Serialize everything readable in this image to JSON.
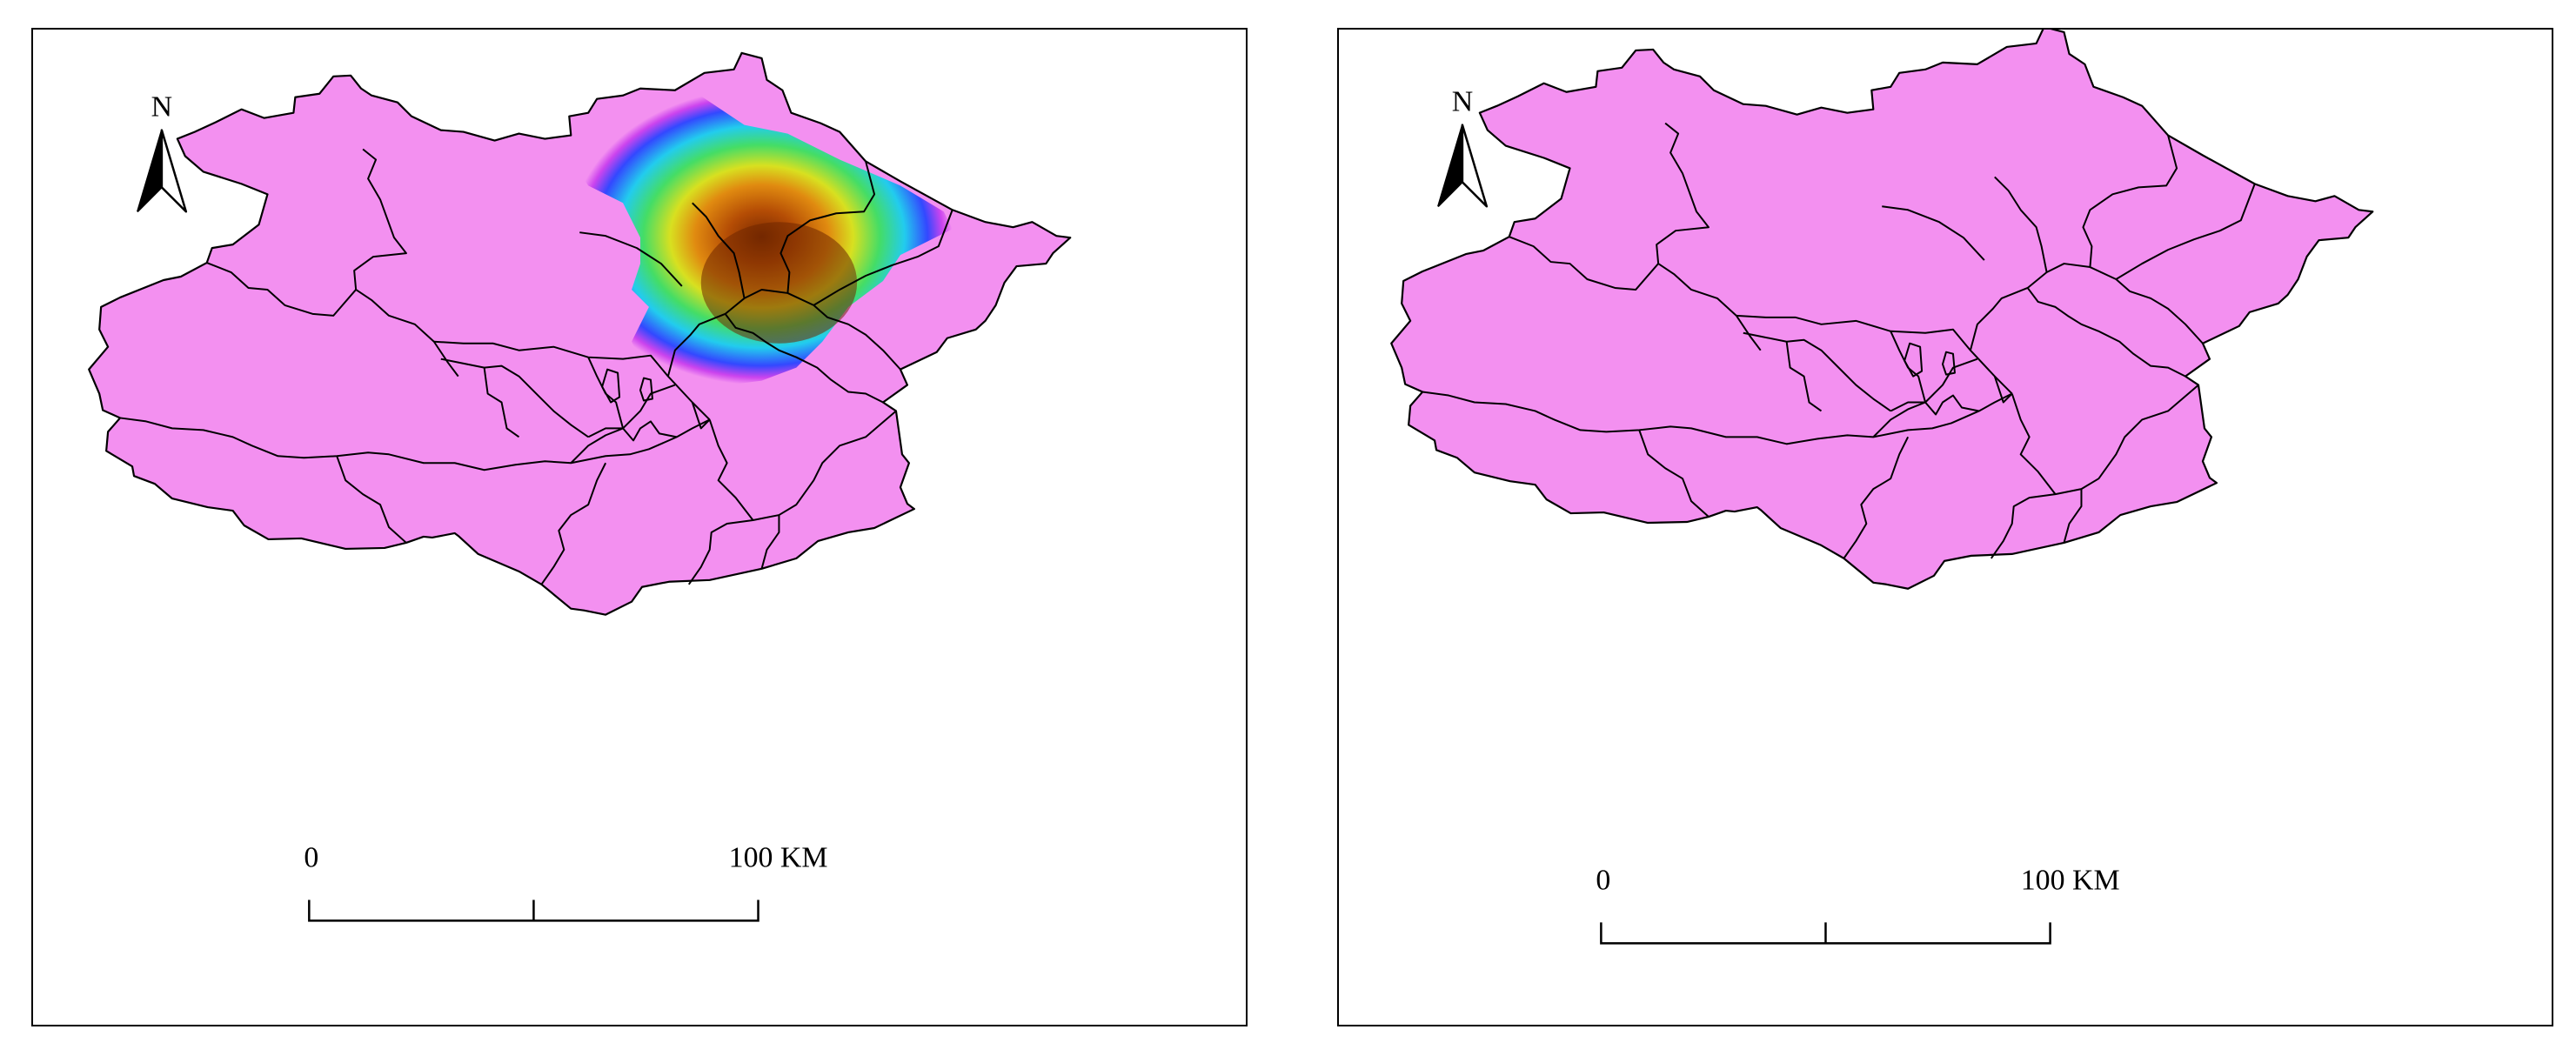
{
  "maps": [
    {
      "north_label": "N",
      "scale_start": "0",
      "scale_end": "100 KM",
      "hotspot": "north"
    },
    {
      "north_label": "N",
      "scale_start": "0",
      "scale_end": "100 KM",
      "hotspot": "southwest"
    }
  ],
  "colors": {
    "district_fill": "#f390f0",
    "boundary": "#000000",
    "heat_scale": [
      "#f390f0",
      "#ffffff",
      "#cc44ee",
      "#3344ff",
      "#22ccff",
      "#33dd66",
      "#ccee22",
      "#ffbb00",
      "#dd6600",
      "#8a3000"
    ]
  }
}
